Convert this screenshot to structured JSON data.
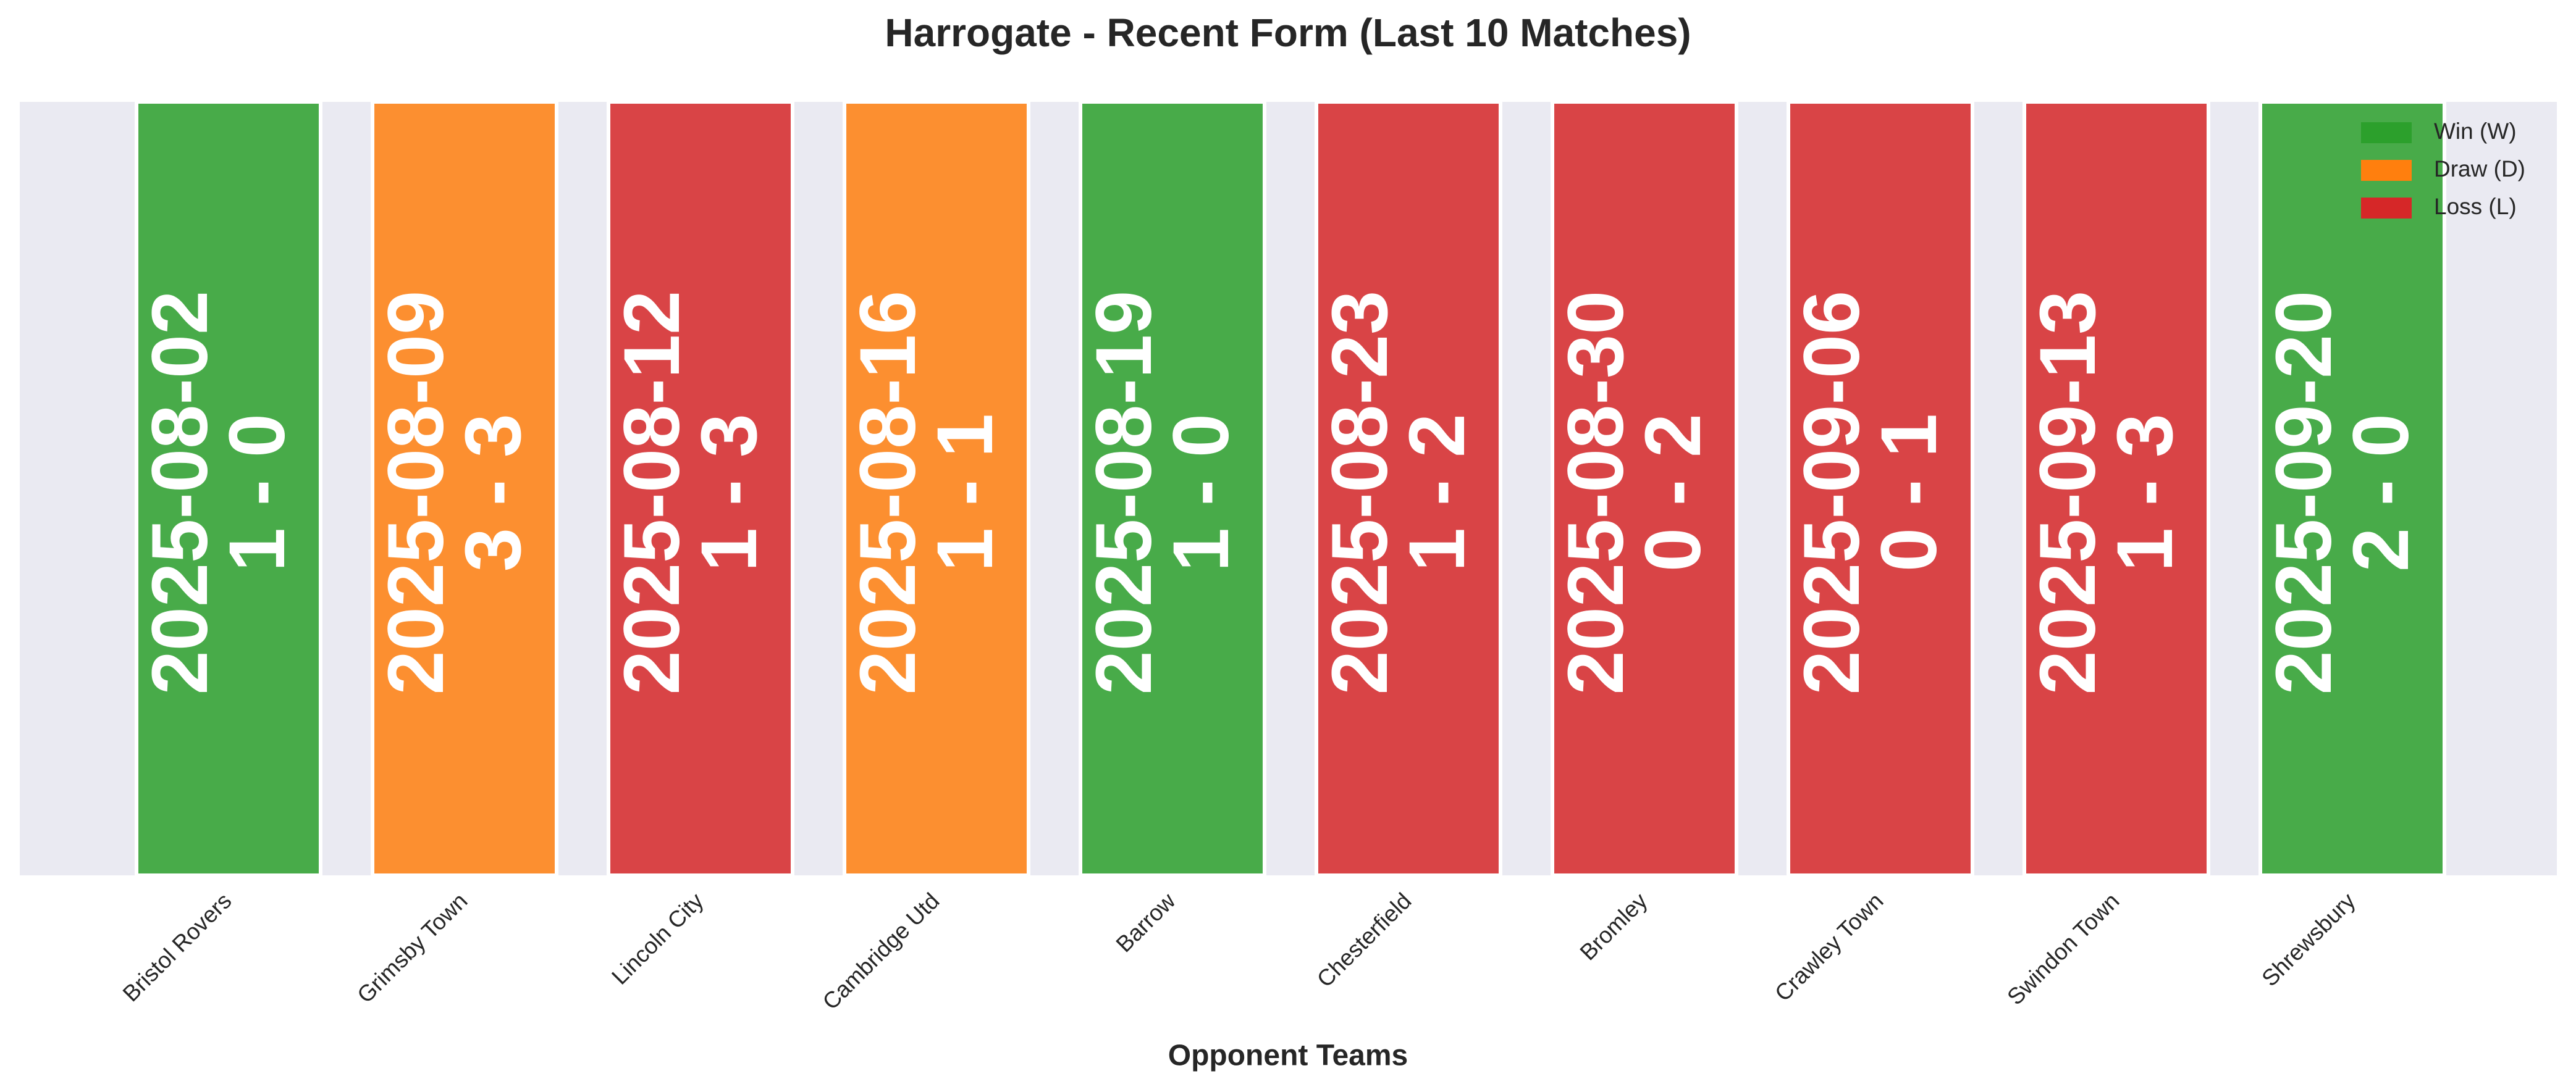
{
  "chart_data": {
    "type": "bar",
    "title": "Harrogate - Recent Form (Last 10 Matches)",
    "xlabel": "Opponent Teams",
    "categories": [
      "Bristol Rovers",
      "Grimsby Town",
      "Lincoln City",
      "Cambridge Utd",
      "Barrow",
      "Chesterfield",
      "Bromley",
      "Crawley Town",
      "Swindon Town",
      "Shrewsbury"
    ],
    "dates": [
      "2025-08-02",
      "2025-08-09",
      "2025-08-12",
      "2025-08-16",
      "2025-08-19",
      "2025-08-23",
      "2025-08-30",
      "2025-09-06",
      "2025-09-13",
      "2025-09-20"
    ],
    "scores": [
      "1 - 0",
      "3 - 3",
      "1 - 3",
      "1 - 1",
      "1 - 0",
      "1 - 2",
      "0 - 2",
      "0 - 1",
      "1 - 3",
      "2 - 0"
    ],
    "bar_colors": [
      "#2ca02c",
      "#ff7f0e",
      "#d62728",
      "#ff7f0e",
      "#2ca02c",
      "#d62728",
      "#d62728",
      "#d62728",
      "#d62728",
      "#2ca02c"
    ],
    "bar_alpha": 0.85,
    "background": "#eaeaf2",
    "legend_position": "upper right",
    "series": [
      {
        "name": "Win (W)",
        "color": "#2ca02c"
      },
      {
        "name": "Draw (D)",
        "color": "#ff7f0e"
      },
      {
        "name": "Loss (L)",
        "color": "#d62728"
      }
    ]
  }
}
